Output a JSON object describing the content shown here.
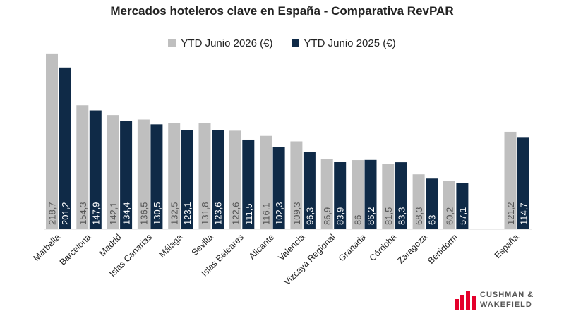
{
  "colors": {
    "series_2026": "#bfbfbf",
    "series_2025": "#0f2a47",
    "logo_red": "#e4002b"
  },
  "chart_data": {
    "type": "bar",
    "title": "Mercados hoteleros clave en España - Comparativa RevPAR",
    "legend_position": "top-center",
    "grid": false,
    "ylim": [
      0,
      230
    ],
    "categories": [
      "Marbella",
      "Barcelona",
      "Madrid",
      "Islas Canarias",
      "Málaga",
      "Sevilla",
      "Islas Baleares",
      "Alicante",
      "Valencia",
      "Vizcaya Regional",
      "Granada",
      "Córdoba",
      "Zaragoza",
      "Benidorm",
      "",
      "España"
    ],
    "series": [
      {
        "name": "YTD Junio 2026 (€)",
        "values": [
          218.7,
          154.3,
          142.1,
          136.5,
          132.5,
          131.8,
          122.6,
          116.1,
          109.3,
          86.9,
          86,
          81.5,
          68.3,
          60.2,
          null,
          121.2
        ],
        "labels": [
          "218,7",
          "154,3",
          "142,1",
          "136,5",
          "132,5",
          "131,8",
          "122,6",
          "116,1",
          "109,3",
          "86,9",
          "86",
          "81,5",
          "68,3",
          "60,2",
          "",
          "121,2"
        ]
      },
      {
        "name": "YTD Junio 2025 (€)",
        "values": [
          201.2,
          147.9,
          134.4,
          130.5,
          123.1,
          123.6,
          111.5,
          102.3,
          96.3,
          83.9,
          86.2,
          83.3,
          63,
          57.1,
          null,
          114.7
        ],
        "labels": [
          "201,2",
          "147,9",
          "134,4",
          "130,5",
          "123,1",
          "123,6",
          "111,5",
          "102,3",
          "96,3",
          "83,9",
          "86,2",
          "83,3",
          "63",
          "57,1",
          "",
          "114,7"
        ]
      }
    ]
  },
  "logo": {
    "line1": "CUSHMAN &",
    "line2": "WAKEFIELD"
  }
}
